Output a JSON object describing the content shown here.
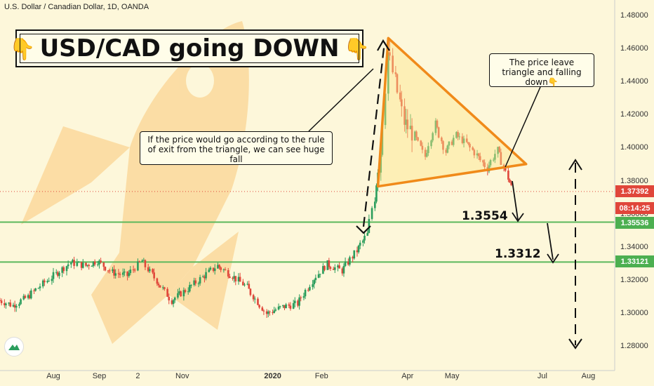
{
  "symbol_label": "U.S. Dollar / Canadian Dollar, 1D, OANDA",
  "title": "USD/CAD going DOWN",
  "title_icon_left": "👇",
  "title_icon_right": "👇",
  "callout_left": "If the price would go according to the rule of exit from the triangle, we can see huge fall",
  "callout_right": "The price leave triangle and falling down👇",
  "level_1": "1.3554",
  "level_2": "1.3312",
  "price_tags": {
    "current": "1.37392",
    "countdown": "08:14:25",
    "support_1": "1.35536",
    "support_2": "1.33121"
  },
  "colors": {
    "background": "#fdf7da",
    "up_candle": "#2a9d5c",
    "down_candle": "#e0463a",
    "support_line": "#5cb85c",
    "triangle": "#f08a1a",
    "current_price": "#e0463a"
  },
  "chart_data": {
    "type": "candlestick",
    "title": "U.S. Dollar / Canadian Dollar, 1D, OANDA",
    "ylim": [
      1.27,
      1.49
    ],
    "yticks": [
      "1.48000",
      "1.46000",
      "1.44000",
      "1.42000",
      "1.40000",
      "1.38000",
      "1.36000",
      "1.34000",
      "1.32000",
      "1.30000",
      "1.28000"
    ],
    "xticks": [
      "Aug",
      "Sep",
      "2",
      "Nov",
      "2020",
      "Feb",
      "Apr",
      "May",
      "Jul",
      "Aug"
    ],
    "x_range": [
      "2019-07-01",
      "2020-08-15"
    ],
    "current_price": 1.37392,
    "horizontal_levels": [
      1.35536,
      1.33121
    ],
    "triangle_apexes": [
      {
        "date": "2020-03-19",
        "price": 1.4667
      },
      {
        "date": "2020-03-12",
        "price": 1.377
      },
      {
        "date": "2020-06-20",
        "price": 1.3905
      }
    ],
    "close_series": [
      {
        "date": "2019-07-01",
        "close": 1.308
      },
      {
        "date": "2019-07-10",
        "close": 1.305
      },
      {
        "date": "2019-07-20",
        "close": 1.31
      },
      {
        "date": "2019-07-30",
        "close": 1.318
      },
      {
        "date": "2019-08-08",
        "close": 1.324
      },
      {
        "date": "2019-08-18",
        "close": 1.331
      },
      {
        "date": "2019-08-28",
        "close": 1.329
      },
      {
        "date": "2019-09-05",
        "close": 1.332
      },
      {
        "date": "2019-09-15",
        "close": 1.325
      },
      {
        "date": "2019-09-25",
        "close": 1.323
      },
      {
        "date": "2019-10-05",
        "close": 1.332
      },
      {
        "date": "2019-10-15",
        "close": 1.32
      },
      {
        "date": "2019-10-25",
        "close": 1.308
      },
      {
        "date": "2019-11-05",
        "close": 1.315
      },
      {
        "date": "2019-11-15",
        "close": 1.322
      },
      {
        "date": "2019-11-25",
        "close": 1.329
      },
      {
        "date": "2019-12-05",
        "close": 1.323
      },
      {
        "date": "2019-12-15",
        "close": 1.316
      },
      {
        "date": "2019-12-28",
        "close": 1.3
      },
      {
        "date": "2020-01-08",
        "close": 1.304
      },
      {
        "date": "2020-01-18",
        "close": 1.306
      },
      {
        "date": "2020-01-28",
        "close": 1.32
      },
      {
        "date": "2020-02-07",
        "close": 1.33
      },
      {
        "date": "2020-02-17",
        "close": 1.326
      },
      {
        "date": "2020-02-27",
        "close": 1.338
      },
      {
        "date": "2020-03-05",
        "close": 1.348
      },
      {
        "date": "2020-03-10",
        "close": 1.372
      },
      {
        "date": "2020-03-14",
        "close": 1.398
      },
      {
        "date": "2020-03-19",
        "close": 1.458
      },
      {
        "date": "2020-03-24",
        "close": 1.44
      },
      {
        "date": "2020-03-30",
        "close": 1.416
      },
      {
        "date": "2020-04-06",
        "close": 1.408
      },
      {
        "date": "2020-04-13",
        "close": 1.395
      },
      {
        "date": "2020-04-20",
        "close": 1.415
      },
      {
        "date": "2020-04-27",
        "close": 1.398
      },
      {
        "date": "2020-05-04",
        "close": 1.408
      },
      {
        "date": "2020-05-11",
        "close": 1.403
      },
      {
        "date": "2020-05-18",
        "close": 1.396
      },
      {
        "date": "2020-05-25",
        "close": 1.388
      },
      {
        "date": "2020-06-01",
        "close": 1.399
      },
      {
        "date": "2020-06-08",
        "close": 1.382
      },
      {
        "date": "2020-06-12",
        "close": 1.3739
      }
    ]
  }
}
